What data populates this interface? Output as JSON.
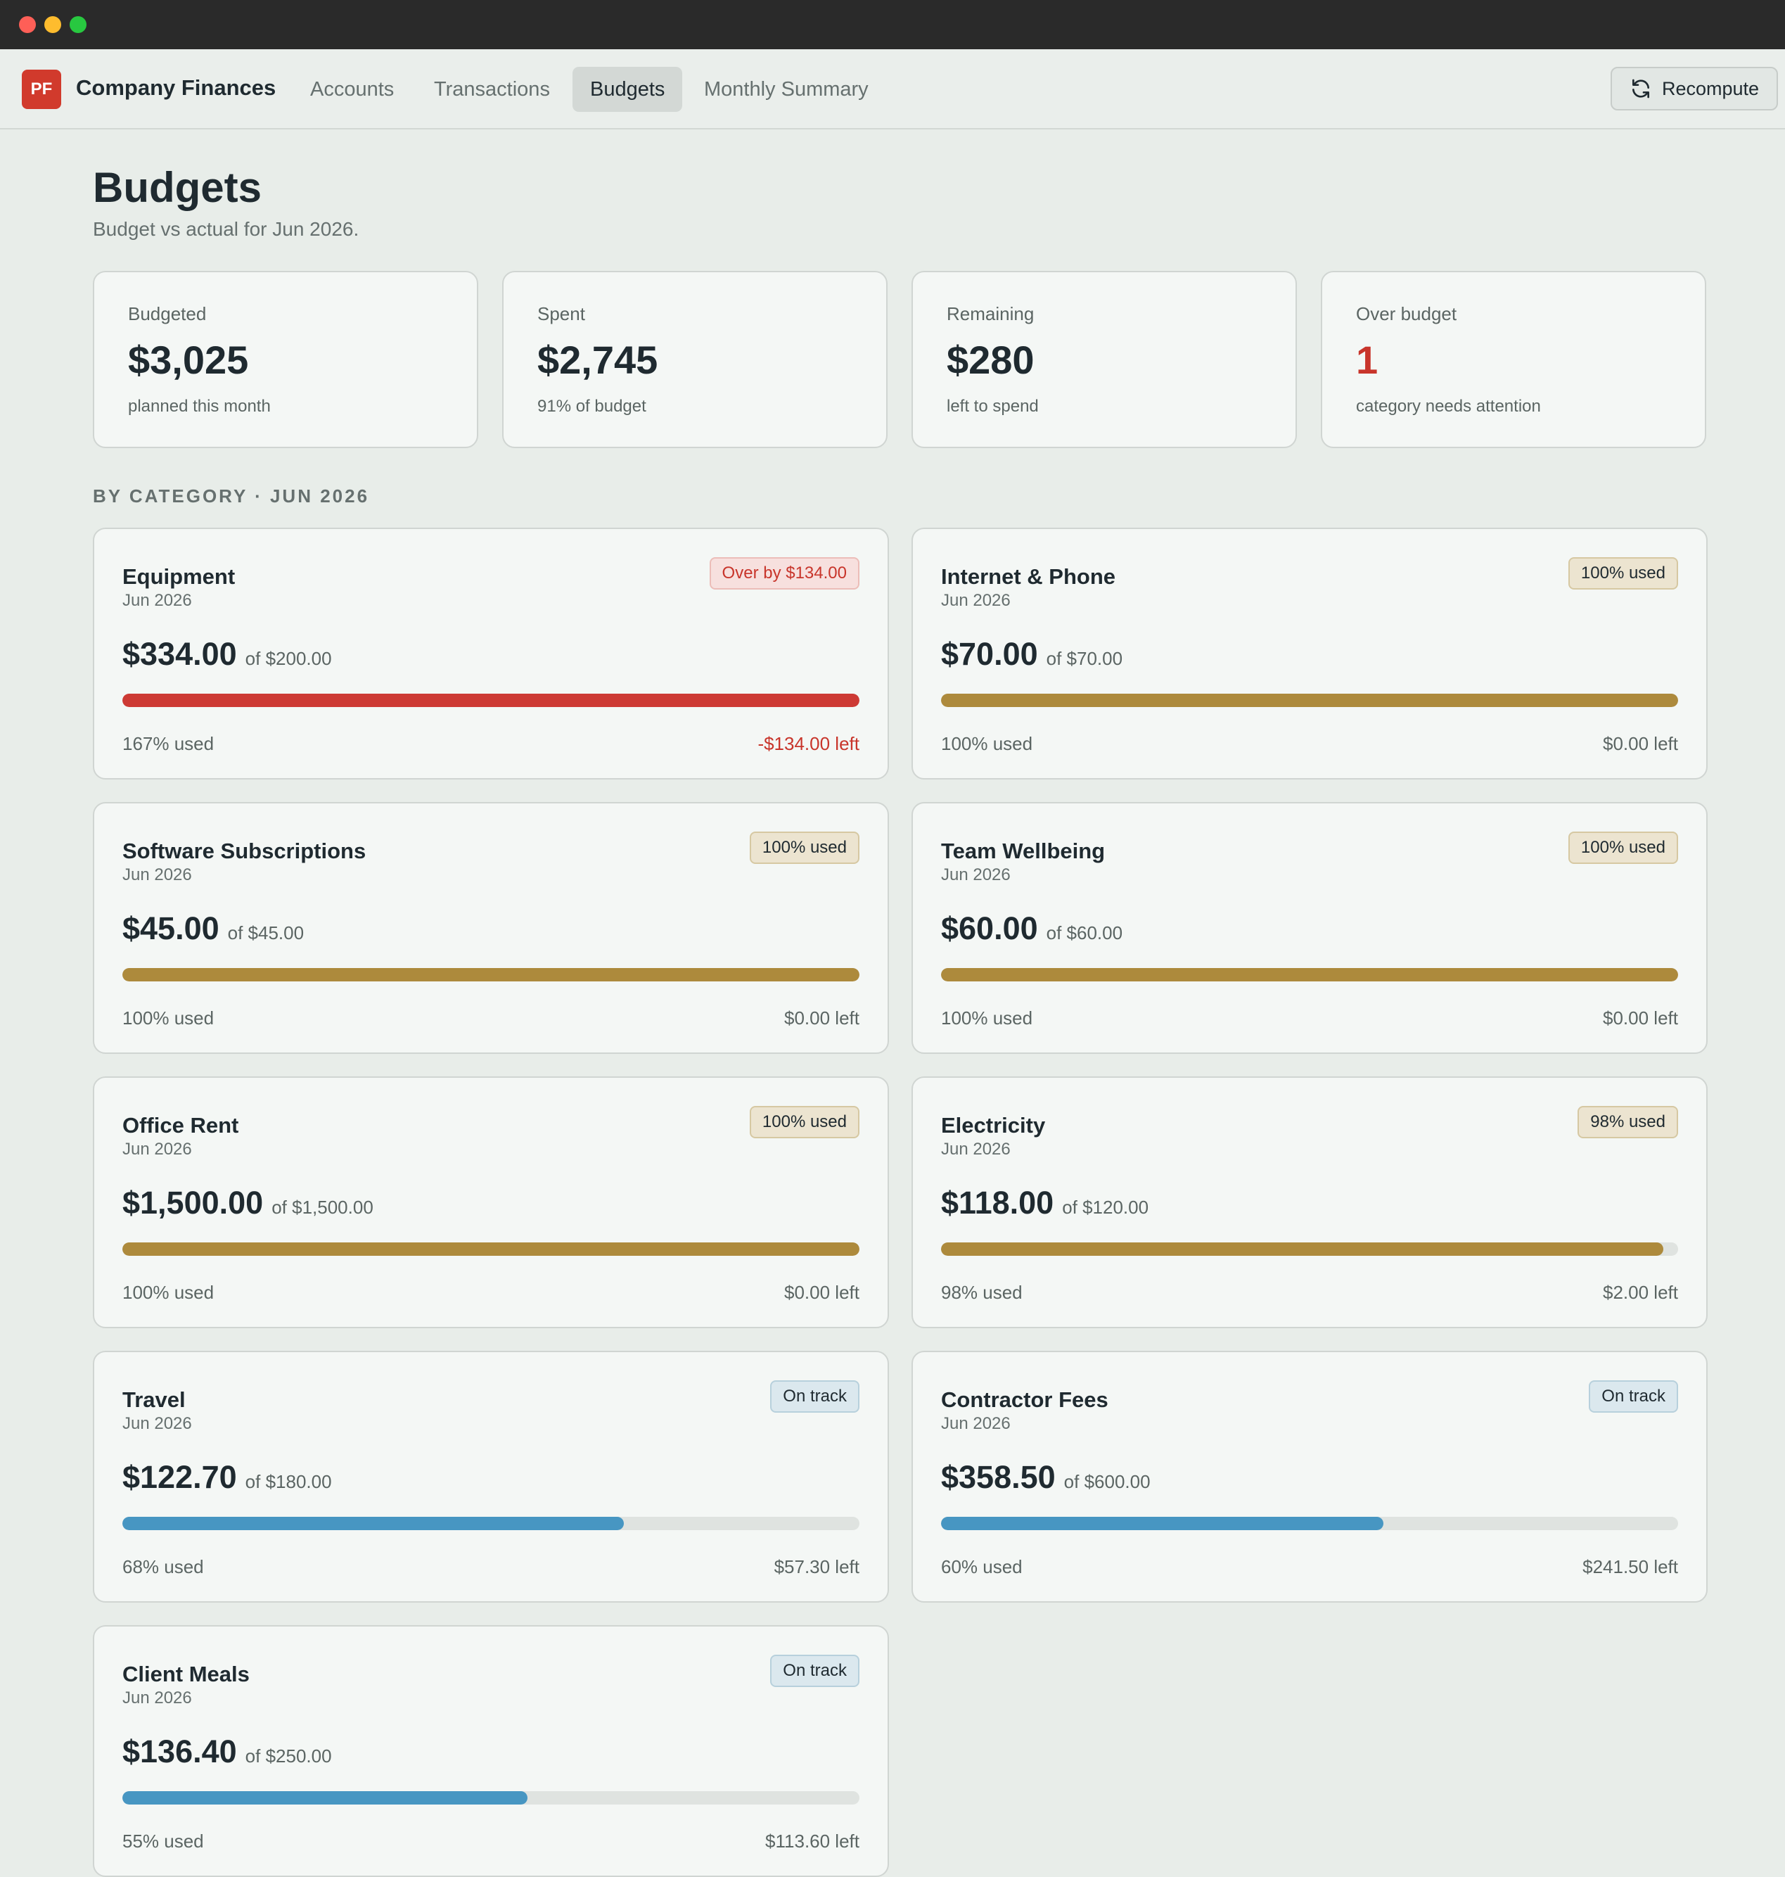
{
  "app": {
    "logo_text": "PF",
    "name": "Company Finances"
  },
  "nav": {
    "tabs": [
      {
        "label": "Accounts",
        "active": false
      },
      {
        "label": "Transactions",
        "active": false
      },
      {
        "label": "Budgets",
        "active": true
      },
      {
        "label": "Monthly Summary",
        "active": false
      }
    ],
    "recompute_label": "Recompute",
    "recompute_icon": "refresh-icon"
  },
  "page": {
    "title": "Budgets",
    "subtitle": "Budget vs actual for Jun 2026."
  },
  "stats": [
    {
      "label": "Budgeted",
      "value": "$3,025",
      "note": "planned this month"
    },
    {
      "label": "Spent",
      "value": "$2,745",
      "note": "91% of budget"
    },
    {
      "label": "Remaining",
      "value": "$280",
      "note": "left to spend"
    },
    {
      "label": "Over budget",
      "value": "1",
      "note": "category needs attention",
      "value_color": "#c8352b"
    }
  ],
  "section_label": "BY CATEGORY · JUN 2026",
  "colors": {
    "over": "#cd3a34",
    "full": "#ad8a3c",
    "on_track": "#4796c2",
    "danger_text": "#c8352b"
  },
  "categories": [
    {
      "name": "Equipment",
      "period": "Jun 2026",
      "badge": "Over by $134.00",
      "status": "over",
      "spent": "$334.00",
      "of": "of $200.00",
      "used": "167% used",
      "left": "-$134.00 left",
      "fill_fraction": 1.0
    },
    {
      "name": "Internet & Phone",
      "period": "Jun 2026",
      "badge": "100% used",
      "status": "full",
      "spent": "$70.00",
      "of": "of $70.00",
      "used": "100% used",
      "left": "$0.00 left",
      "fill_fraction": 1.0
    },
    {
      "name": "Software Subscriptions",
      "period": "Jun 2026",
      "badge": "100% used",
      "status": "full",
      "spent": "$45.00",
      "of": "of $45.00",
      "used": "100% used",
      "left": "$0.00 left",
      "fill_fraction": 1.0
    },
    {
      "name": "Team Wellbeing",
      "period": "Jun 2026",
      "badge": "100% used",
      "status": "full",
      "spent": "$60.00",
      "of": "of $60.00",
      "used": "100% used",
      "left": "$0.00 left",
      "fill_fraction": 1.0
    },
    {
      "name": "Office Rent",
      "period": "Jun 2026",
      "badge": "100% used",
      "status": "full",
      "spent": "$1,500.00",
      "of": "of $1,500.00",
      "used": "100% used",
      "left": "$0.00 left",
      "fill_fraction": 1.0
    },
    {
      "name": "Electricity",
      "period": "Jun 2026",
      "badge": "98% used",
      "status": "full",
      "spent": "$118.00",
      "of": "of $120.00",
      "used": "98% used",
      "left": "$2.00 left",
      "fill_fraction": 0.98
    },
    {
      "name": "Travel",
      "period": "Jun 2026",
      "badge": "On track",
      "status": "track",
      "spent": "$122.70",
      "of": "of $180.00",
      "used": "68% used",
      "left": "$57.30 left",
      "fill_fraction": 0.68
    },
    {
      "name": "Contractor Fees",
      "period": "Jun 2026",
      "badge": "On track",
      "status": "track",
      "spent": "$358.50",
      "of": "of $600.00",
      "used": "60% used",
      "left": "$241.50 left",
      "fill_fraction": 0.6
    },
    {
      "name": "Client Meals",
      "period": "Jun 2026",
      "badge": "On track",
      "status": "track",
      "spent": "$136.40",
      "of": "of $250.00",
      "used": "55% used",
      "left": "$113.60 left",
      "fill_fraction": 0.55
    }
  ]
}
